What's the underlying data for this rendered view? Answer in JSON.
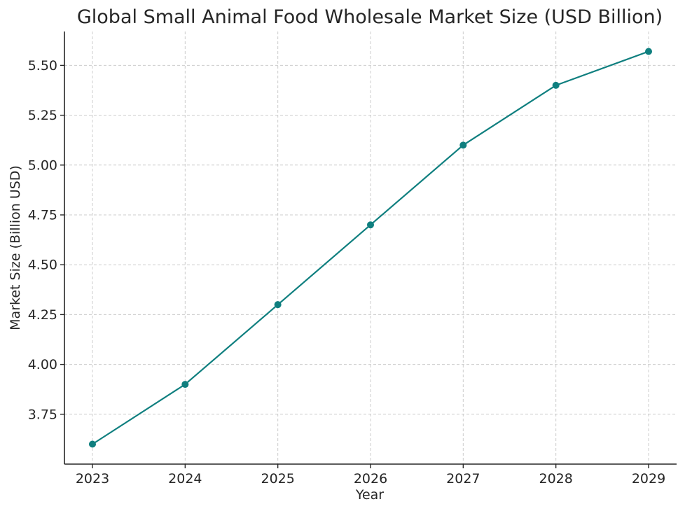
{
  "chart_data": {
    "type": "line",
    "title": "Global Small Animal Food Wholesale Market Size (USD Billion)",
    "xlabel": "Year",
    "ylabel": "Market Size (Billion USD)",
    "x": [
      "2023",
      "2024",
      "2025",
      "2026",
      "2027",
      "2028",
      "2029"
    ],
    "series": [
      {
        "values": [
          3.6,
          3.9,
          4.3,
          4.7,
          5.1,
          5.4,
          5.57
        ],
        "color": "#0f7f7f"
      }
    ],
    "yticks": [
      "3.75",
      "4.00",
      "4.25",
      "4.50",
      "4.75",
      "5.00",
      "5.25",
      "5.50"
    ],
    "ylim": [
      3.5,
      5.67
    ],
    "grid": true,
    "marker": "circle"
  }
}
